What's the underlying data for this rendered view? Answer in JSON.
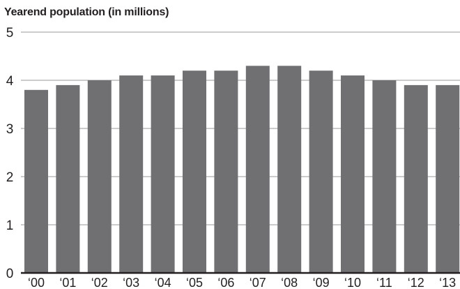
{
  "chart_data": {
    "type": "bar",
    "title": "Yearend population (in millions)",
    "categories": [
      "‘00",
      "‘01",
      "‘02",
      "‘03",
      "‘04",
      "‘05",
      "‘06",
      "‘07",
      "‘08",
      "‘09",
      "‘10",
      "‘11",
      "‘12",
      "‘13"
    ],
    "values": [
      3.8,
      3.9,
      4.0,
      4.1,
      4.1,
      4.2,
      4.2,
      4.3,
      4.3,
      4.2,
      4.1,
      4.0,
      3.9,
      3.9
    ],
    "xlabel": "",
    "ylabel": "",
    "ylim": [
      0,
      5
    ],
    "yticks": [
      "0",
      "1",
      "2",
      "3",
      "4",
      "5"
    ],
    "grid": true,
    "colors": {
      "bar": "#707073",
      "grid": "#9a9a9a",
      "axis": "#231f20",
      "text": "#231f20"
    }
  }
}
